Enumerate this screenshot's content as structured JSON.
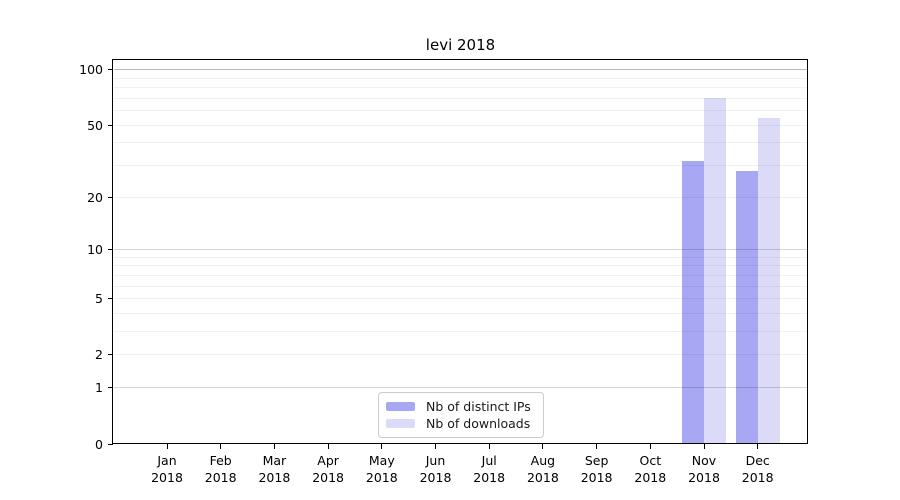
{
  "chart_data": {
    "type": "bar",
    "title": "levi 2018",
    "categories": [
      "Jan",
      "Feb",
      "Mar",
      "Apr",
      "May",
      "Jun",
      "Jul",
      "Aug",
      "Sep",
      "Oct",
      "Nov",
      "Dec"
    ],
    "x_tick_year": "2018",
    "series": [
      {
        "name": "Nb of distinct IPs",
        "color": "#a7a7f4",
        "values": [
          0,
          0,
          0,
          0,
          0,
          0,
          0,
          0,
          0,
          0,
          32,
          28
        ]
      },
      {
        "name": "Nb of downloads",
        "color": "#dbdbf8",
        "values": [
          0,
          0,
          0,
          0,
          0,
          0,
          0,
          0,
          0,
          0,
          70,
          55
        ]
      }
    ],
    "y_axis": {
      "scale": "log1p",
      "tick_labels": [
        0,
        1,
        2,
        5,
        10,
        20,
        50,
        100
      ],
      "minor_gridlines": [
        3,
        4,
        6,
        7,
        8,
        9,
        30,
        40,
        60,
        70,
        80,
        90
      ],
      "ylim": [
        0,
        113
      ]
    },
    "legend": {
      "position": "lower center",
      "entries": [
        "Nb of distinct IPs",
        "Nb of downloads"
      ]
    },
    "grid": true
  }
}
